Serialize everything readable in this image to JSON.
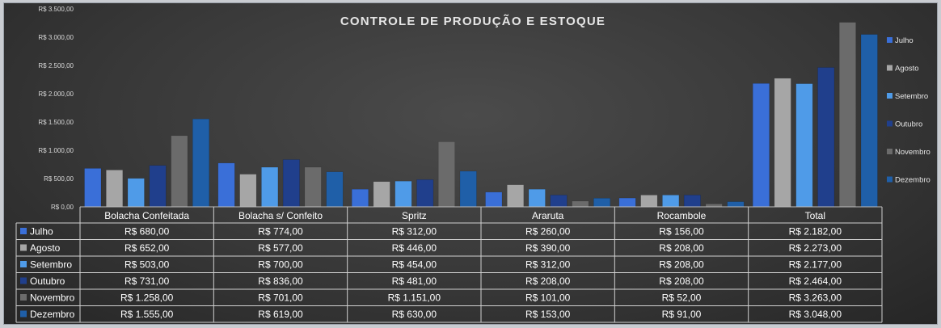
{
  "chart_data": {
    "type": "bar",
    "title": "CONTROLE DE PRODUÇÃO E ESTOQUE",
    "categories": [
      "Bolacha Confeitada",
      "Bolacha s/ Confeito",
      "Spritz",
      "Araruta",
      "Rocambole",
      "Total"
    ],
    "series": [
      {
        "name": "Julho",
        "color": "#3a6fd8",
        "values": [
          680,
          774,
          312,
          260,
          156,
          2182
        ],
        "labels": [
          "R$ 680,00",
          "R$ 774,00",
          "R$ 312,00",
          "R$ 260,00",
          "R$ 156,00",
          "R$ 2.182,00"
        ]
      },
      {
        "name": "Agosto",
        "color": "#a6a6a6",
        "values": [
          652,
          577,
          446,
          390,
          208,
          2273
        ],
        "labels": [
          "R$ 652,00",
          "R$ 577,00",
          "R$ 446,00",
          "R$ 390,00",
          "R$ 208,00",
          "R$ 2.273,00"
        ]
      },
      {
        "name": "Setembro",
        "color": "#4f9be8",
        "values": [
          503,
          700,
          454,
          312,
          208,
          2177
        ],
        "labels": [
          "R$ 503,00",
          "R$ 700,00",
          "R$ 454,00",
          "R$ 312,00",
          "R$ 208,00",
          "R$ 2.177,00"
        ]
      },
      {
        "name": "Outubro",
        "color": "#203f8c",
        "values": [
          731,
          836,
          481,
          208,
          208,
          2464
        ],
        "labels": [
          "R$ 731,00",
          "R$ 836,00",
          "R$ 481,00",
          "R$ 208,00",
          "R$ 208,00",
          "R$ 2.464,00"
        ]
      },
      {
        "name": "Novembro",
        "color": "#6b6b6b",
        "values": [
          1258,
          701,
          1151,
          101,
          52,
          3263
        ],
        "labels": [
          "R$ 1.258,00",
          "R$ 701,00",
          "R$ 1.151,00",
          "R$ 101,00",
          "R$ 52,00",
          "R$ 3.263,00"
        ]
      },
      {
        "name": "Dezembro",
        "color": "#1f5fa8",
        "values": [
          1555,
          619,
          630,
          153,
          91,
          3048
        ],
        "labels": [
          "R$ 1.555,00",
          "R$ 619,00",
          "R$ 630,00",
          "R$ 153,00",
          "R$ 91,00",
          "R$ 3.048,00"
        ]
      }
    ],
    "y_ticks": [
      {
        "value": 0,
        "label": "R$ 0,00"
      },
      {
        "value": 500,
        "label": "R$ 500,00"
      },
      {
        "value": 1000,
        "label": "R$ 1.000,00"
      },
      {
        "value": 1500,
        "label": "R$ 1.500,00"
      },
      {
        "value": 2000,
        "label": "R$ 2.000,00"
      },
      {
        "value": 2500,
        "label": "R$ 2.500,00"
      },
      {
        "value": 3000,
        "label": "R$ 3.000,00"
      },
      {
        "value": 3500,
        "label": "R$ 3.500,00"
      }
    ],
    "ylim": [
      0,
      3500
    ],
    "grid": false,
    "legend_position": "right",
    "data_table": true
  }
}
